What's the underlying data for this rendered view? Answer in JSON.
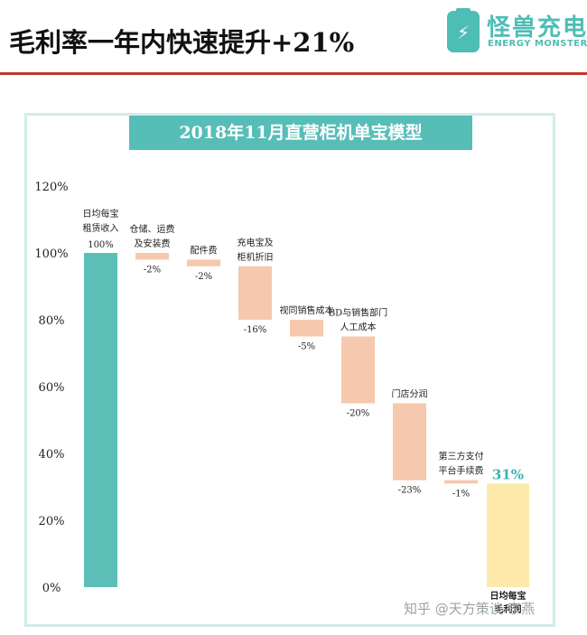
{
  "header": {
    "title": "毛利率一年内快速提升+21%",
    "logo_icon": "battery-bolt-icon",
    "logo_cn": "怪兽充电",
    "logo_en": "ENERGY MONSTER"
  },
  "colors": {
    "start_bar": "#5bbfb8",
    "decrease_bar": "#f6c8ad",
    "end_bar": "#fde9a9",
    "accent_title_bg": "#57bdb7",
    "rule": "#c0392b",
    "result_label": "#3fb1b1"
  },
  "chart_data": {
    "type": "bar",
    "subtype": "waterfall",
    "title": "2018年11月直营柜机单宝模型",
    "ylim": [
      0,
      120
    ],
    "yticks": [
      "0%",
      "20%",
      "40%",
      "60%",
      "80%",
      "100%",
      "120%"
    ],
    "grid": false,
    "legend": "none",
    "steps": [
      {
        "category": [
          "日均每宝",
          "租赁收入"
        ],
        "value": 100,
        "label": "100%",
        "kind": "start"
      },
      {
        "category": [
          "仓储、运费",
          "及安装费"
        ],
        "value": -2,
        "label": "-2%",
        "kind": "decrease"
      },
      {
        "category": [
          "配件费"
        ],
        "value": -2,
        "label": "-2%",
        "kind": "decrease"
      },
      {
        "category": [
          "充电宝及",
          "柜机折旧"
        ],
        "value": -16,
        "label": "-16%",
        "kind": "decrease"
      },
      {
        "category": [
          "视同销售成本"
        ],
        "value": -5,
        "label": "-5%",
        "kind": "decrease"
      },
      {
        "category": [
          "BD与销售部门",
          "人工成本"
        ],
        "value": -20,
        "label": "-20%",
        "kind": "decrease"
      },
      {
        "category": [
          "门店分润"
        ],
        "value": -23,
        "label": "-23%",
        "kind": "decrease"
      },
      {
        "category": [
          "第三方支付",
          "平台手续费"
        ],
        "value": -1,
        "label": "-1%",
        "kind": "decrease"
      },
      {
        "category": [
          "日均每宝",
          "毛利润"
        ],
        "value": 31,
        "label": "31%",
        "kind": "end"
      }
    ]
  },
  "watermark": "知乎 @天方策谈-李燕"
}
